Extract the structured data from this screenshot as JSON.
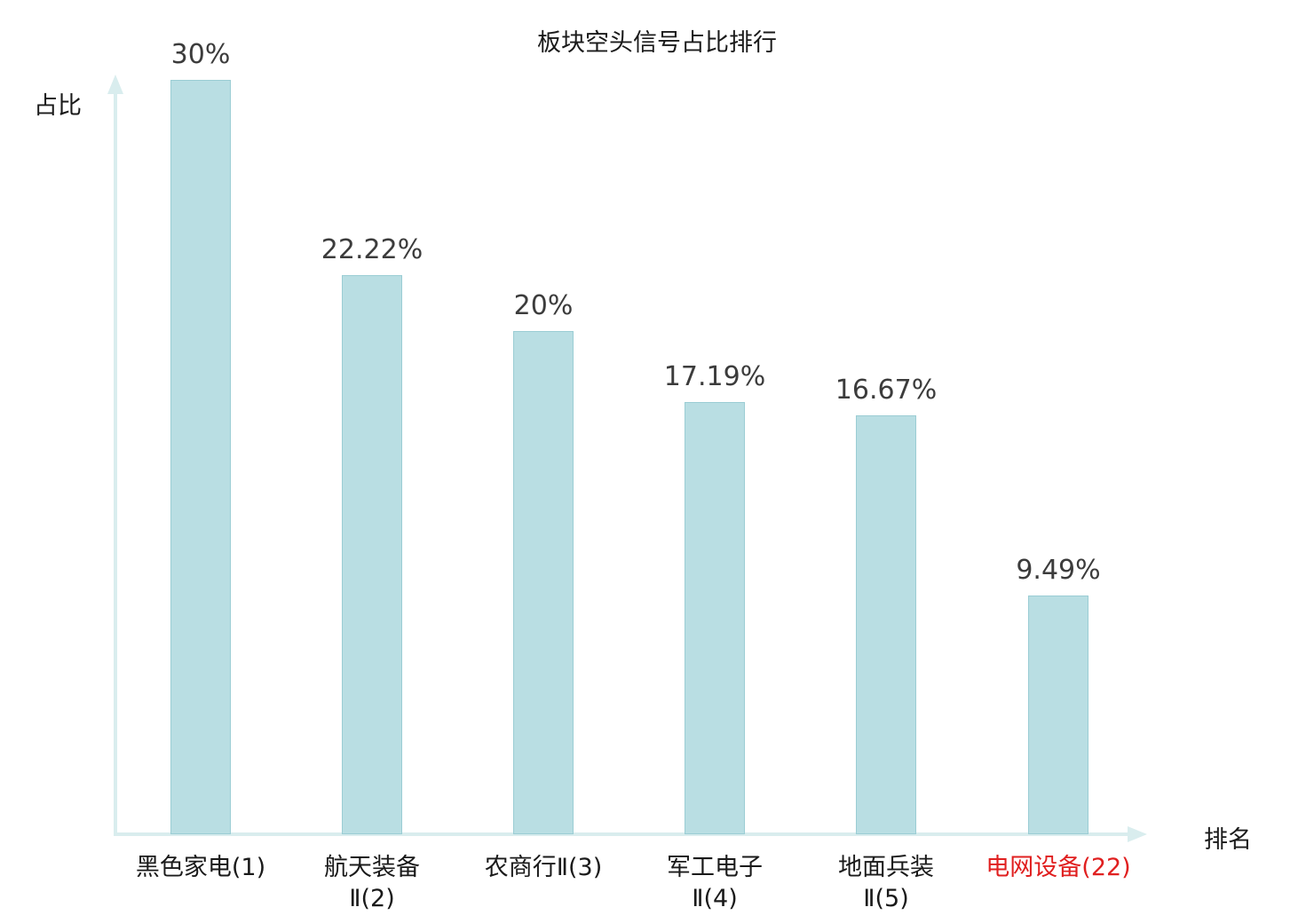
{
  "chart_data": {
    "type": "bar",
    "title": "板块空头信号占比排行",
    "ylabel": "占比",
    "xlabel": "排名",
    "categories_full": [
      "黑色家电(1)",
      "航天装备Ⅱ(2)",
      "农商行Ⅱ(3)",
      "军工电子Ⅱ(4)",
      "地面兵装Ⅱ(5)",
      "电网设备(22)"
    ],
    "categories": [
      {
        "lines": [
          "黑色家电(1)"
        ],
        "color": "#1a1a1a"
      },
      {
        "lines": [
          "航天装备",
          "Ⅱ(2)"
        ],
        "color": "#1a1a1a"
      },
      {
        "lines": [
          "农商行Ⅱ(3)"
        ],
        "color": "#1a1a1a"
      },
      {
        "lines": [
          "军工电子",
          "Ⅱ(4)"
        ],
        "color": "#1a1a1a"
      },
      {
        "lines": [
          "地面兵装",
          "Ⅱ(5)"
        ],
        "color": "#1a1a1a"
      },
      {
        "lines": [
          "电网设备(22)"
        ],
        "color": "#e02020"
      }
    ],
    "values": [
      30,
      22.22,
      20,
      17.19,
      16.67,
      9.49
    ],
    "value_labels": [
      "30%",
      "22.22%",
      "20%",
      "17.19%",
      "16.67%",
      "9.49%"
    ],
    "ylim": [
      0,
      30
    ],
    "grid": false,
    "legend": "none",
    "bar_color": "#b9dee3",
    "bar_border_color": "#9bcdd4",
    "axis_color": "#d9edee",
    "highlight_color": "#e02020"
  }
}
